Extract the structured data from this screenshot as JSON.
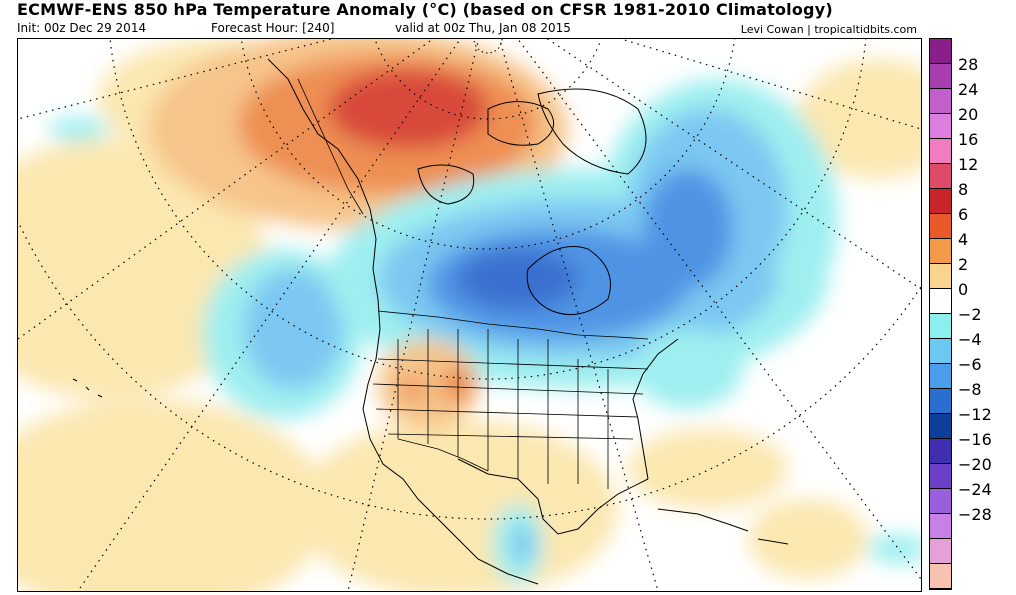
{
  "header": {
    "title": "ECMWF-ENS 850 hPa Temperature Anomaly (°C) (based on CFSR 1981-2010 Climatology)",
    "init": "Init: 00z Dec 29 2014",
    "forecast_hour": "Forecast Hour: [240]",
    "valid": "valid at 00z Thu, Jan 08 2015",
    "credit": "Levi Cowan | tropicaltidbits.com"
  },
  "colorbar": {
    "labels": [
      "28",
      "24",
      "20",
      "16",
      "12",
      "8",
      "6",
      "4",
      "2",
      "0",
      "−2",
      "−4",
      "−6",
      "−8",
      "−12",
      "−16",
      "−20",
      "−24",
      "−28"
    ],
    "colors": [
      "#8a1f8c",
      "#a83fb0",
      "#c35fcc",
      "#dd7fe0",
      "#f27cc0",
      "#de4a6a",
      "#c8252a",
      "#e85a2a",
      "#f39a4a",
      "#f8d48e",
      "#ffffff",
      "#8cefef",
      "#6cc8f2",
      "#4a9de8",
      "#2a6ed0",
      "#0d3f9a",
      "#3f2fb0",
      "#6b3fc8",
      "#9a5fdc",
      "#c87fe6",
      "#e6a0d8",
      "#f7c2b0"
    ]
  },
  "map_palette": {
    "warm_light": "#fbe7b0",
    "warm_mid": "#f6c58a",
    "warm_strong": "#ee8f52",
    "warm_peak": "#d8483a",
    "cold_light": "#9feff0",
    "cold_mid": "#7cc8f2",
    "cold_strong": "#4f94e4",
    "cold_peak": "#3a70d0"
  }
}
